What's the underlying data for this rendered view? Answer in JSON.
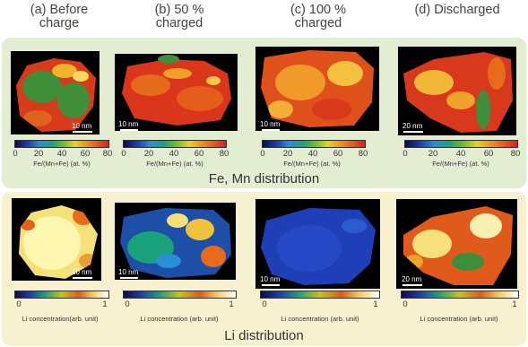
{
  "columns": [
    {
      "line1": "(a) Before",
      "line2": "charge"
    },
    {
      "line1": "(b) 50 %",
      "line2": "charged"
    },
    {
      "line1": "(c) 100 %",
      "line2": "charged"
    },
    {
      "line1": "(d) Discharged",
      "line2": ""
    }
  ],
  "fe_mn": {
    "section_label": "Fe, Mn distribution",
    "colorbar_ticks": [
      "0",
      "20",
      "40",
      "60",
      "80"
    ],
    "colorbar_title": "Fe/(Mn+Fe) (at. %)",
    "scale_labels": [
      "10 nm",
      "10 nm",
      "10 nm",
      "20 nm"
    ]
  },
  "li": {
    "section_label": "Li distribution",
    "colorbar_ticks": [
      "0",
      "1"
    ],
    "colorbar_titles": [
      "Li concentration(arb. unit)",
      "Li concentration (arb. unit)",
      "Li concentration (arb. unit)",
      "Li concentration (arb. unit)"
    ],
    "scale_labels": [
      "10 nm",
      "10 nm",
      "10 nm",
      "20 nm"
    ]
  },
  "colors": {
    "fe_panel_bg": "#e3edd2",
    "li_panel_bg": "#f7f1cf"
  }
}
